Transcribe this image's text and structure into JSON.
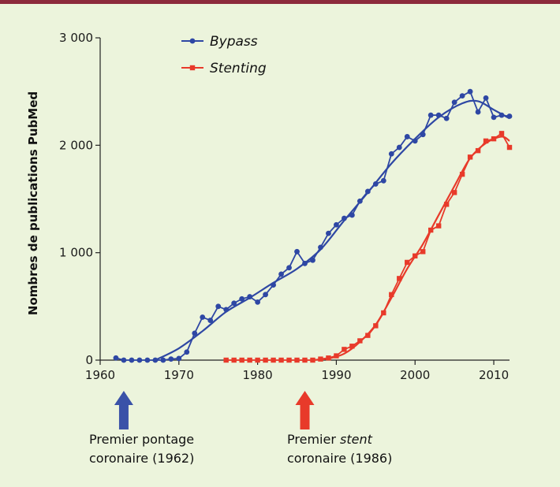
{
  "chart_data": {
    "type": "line",
    "ylabel": "Nombres de publications PubMed",
    "xlabel": "",
    "xlim": [
      1960,
      2012
    ],
    "ylim": [
      0,
      3000
    ],
    "x_ticks": [
      1960,
      1970,
      1980,
      1990,
      2000,
      2010
    ],
    "y_ticks": [
      0,
      1000,
      2000,
      3000
    ],
    "y_tick_labels": [
      "0",
      "1 000",
      "2 000",
      "3 000"
    ],
    "grid": false,
    "legend_position": "top-center",
    "series": [
      {
        "name": "Bypass",
        "color": "#2e47a4",
        "marker": "circle",
        "x": [
          1962,
          1963,
          1964,
          1965,
          1966,
          1967,
          1968,
          1969,
          1970,
          1971,
          1972,
          1973,
          1974,
          1975,
          1976,
          1977,
          1978,
          1979,
          1980,
          1981,
          1982,
          1983,
          1984,
          1985,
          1986,
          1987,
          1988,
          1989,
          1990,
          1991,
          1992,
          1993,
          1994,
          1995,
          1996,
          1997,
          1998,
          1999,
          2000,
          2001,
          2002,
          2003,
          2004,
          2005,
          2006,
          2007,
          2008,
          2009,
          2010,
          2011,
          2012
        ],
        "values": [
          20,
          0,
          0,
          0,
          0,
          0,
          0,
          10,
          15,
          75,
          250,
          400,
          370,
          500,
          470,
          530,
          570,
          590,
          540,
          610,
          700,
          800,
          860,
          1010,
          900,
          930,
          1050,
          1180,
          1260,
          1320,
          1350,
          1480,
          1570,
          1640,
          1670,
          1920,
          1980,
          2080,
          2040,
          2100,
          2280,
          2280,
          2250,
          2400,
          2460,
          2500,
          2310,
          2440,
          2260,
          2280,
          2270
        ]
      },
      {
        "name": "Stenting",
        "color": "#e83a2a",
        "marker": "square",
        "x": [
          1976,
          1977,
          1978,
          1979,
          1980,
          1981,
          1982,
          1983,
          1984,
          1985,
          1986,
          1987,
          1988,
          1989,
          1990,
          1991,
          1992,
          1993,
          1994,
          1995,
          1996,
          1997,
          1998,
          1999,
          2000,
          2001,
          2002,
          2003,
          2004,
          2005,
          2006,
          2007,
          2008,
          2009,
          2010,
          2011,
          2012
        ],
        "values": [
          0,
          0,
          0,
          0,
          0,
          0,
          0,
          0,
          0,
          0,
          0,
          0,
          10,
          20,
          40,
          100,
          130,
          180,
          230,
          320,
          440,
          610,
          760,
          910,
          970,
          1010,
          1210,
          1250,
          1450,
          1560,
          1730,
          1890,
          1950,
          2040,
          2060,
          2110,
          1980
        ]
      }
    ],
    "trends": [
      {
        "series": "Bypass",
        "x": [
          1967,
          1970,
          1973,
          1976,
          1979,
          1982,
          1985,
          1988,
          1991,
          1994,
          1997,
          2000,
          2003,
          2006,
          2008,
          2010,
          2012
        ],
        "values": [
          0,
          110,
          270,
          450,
          580,
          720,
          850,
          1030,
          1300,
          1560,
          1830,
          2060,
          2260,
          2390,
          2410,
          2330,
          2250
        ]
      },
      {
        "series": "Stenting",
        "x": [
          1987,
          1989,
          1991,
          1993,
          1995,
          1997,
          1999,
          2001,
          2003,
          2005,
          2007,
          2009,
          2011,
          2012
        ],
        "values": [
          0,
          15,
          60,
          170,
          330,
          580,
          850,
          1080,
          1350,
          1620,
          1880,
          2020,
          2080,
          2040
        ]
      }
    ],
    "annotations": [
      {
        "id": "bypass",
        "x": 1963,
        "color": "#3a52a8",
        "line1": "Premier pontage",
        "line2": "coronaire (1962)"
      },
      {
        "id": "stent",
        "x": 1986,
        "color": "#e83a2a",
        "line1_pre": "Premier ",
        "line1_em": "stent",
        "line2": "coronaire (1986)"
      }
    ]
  }
}
